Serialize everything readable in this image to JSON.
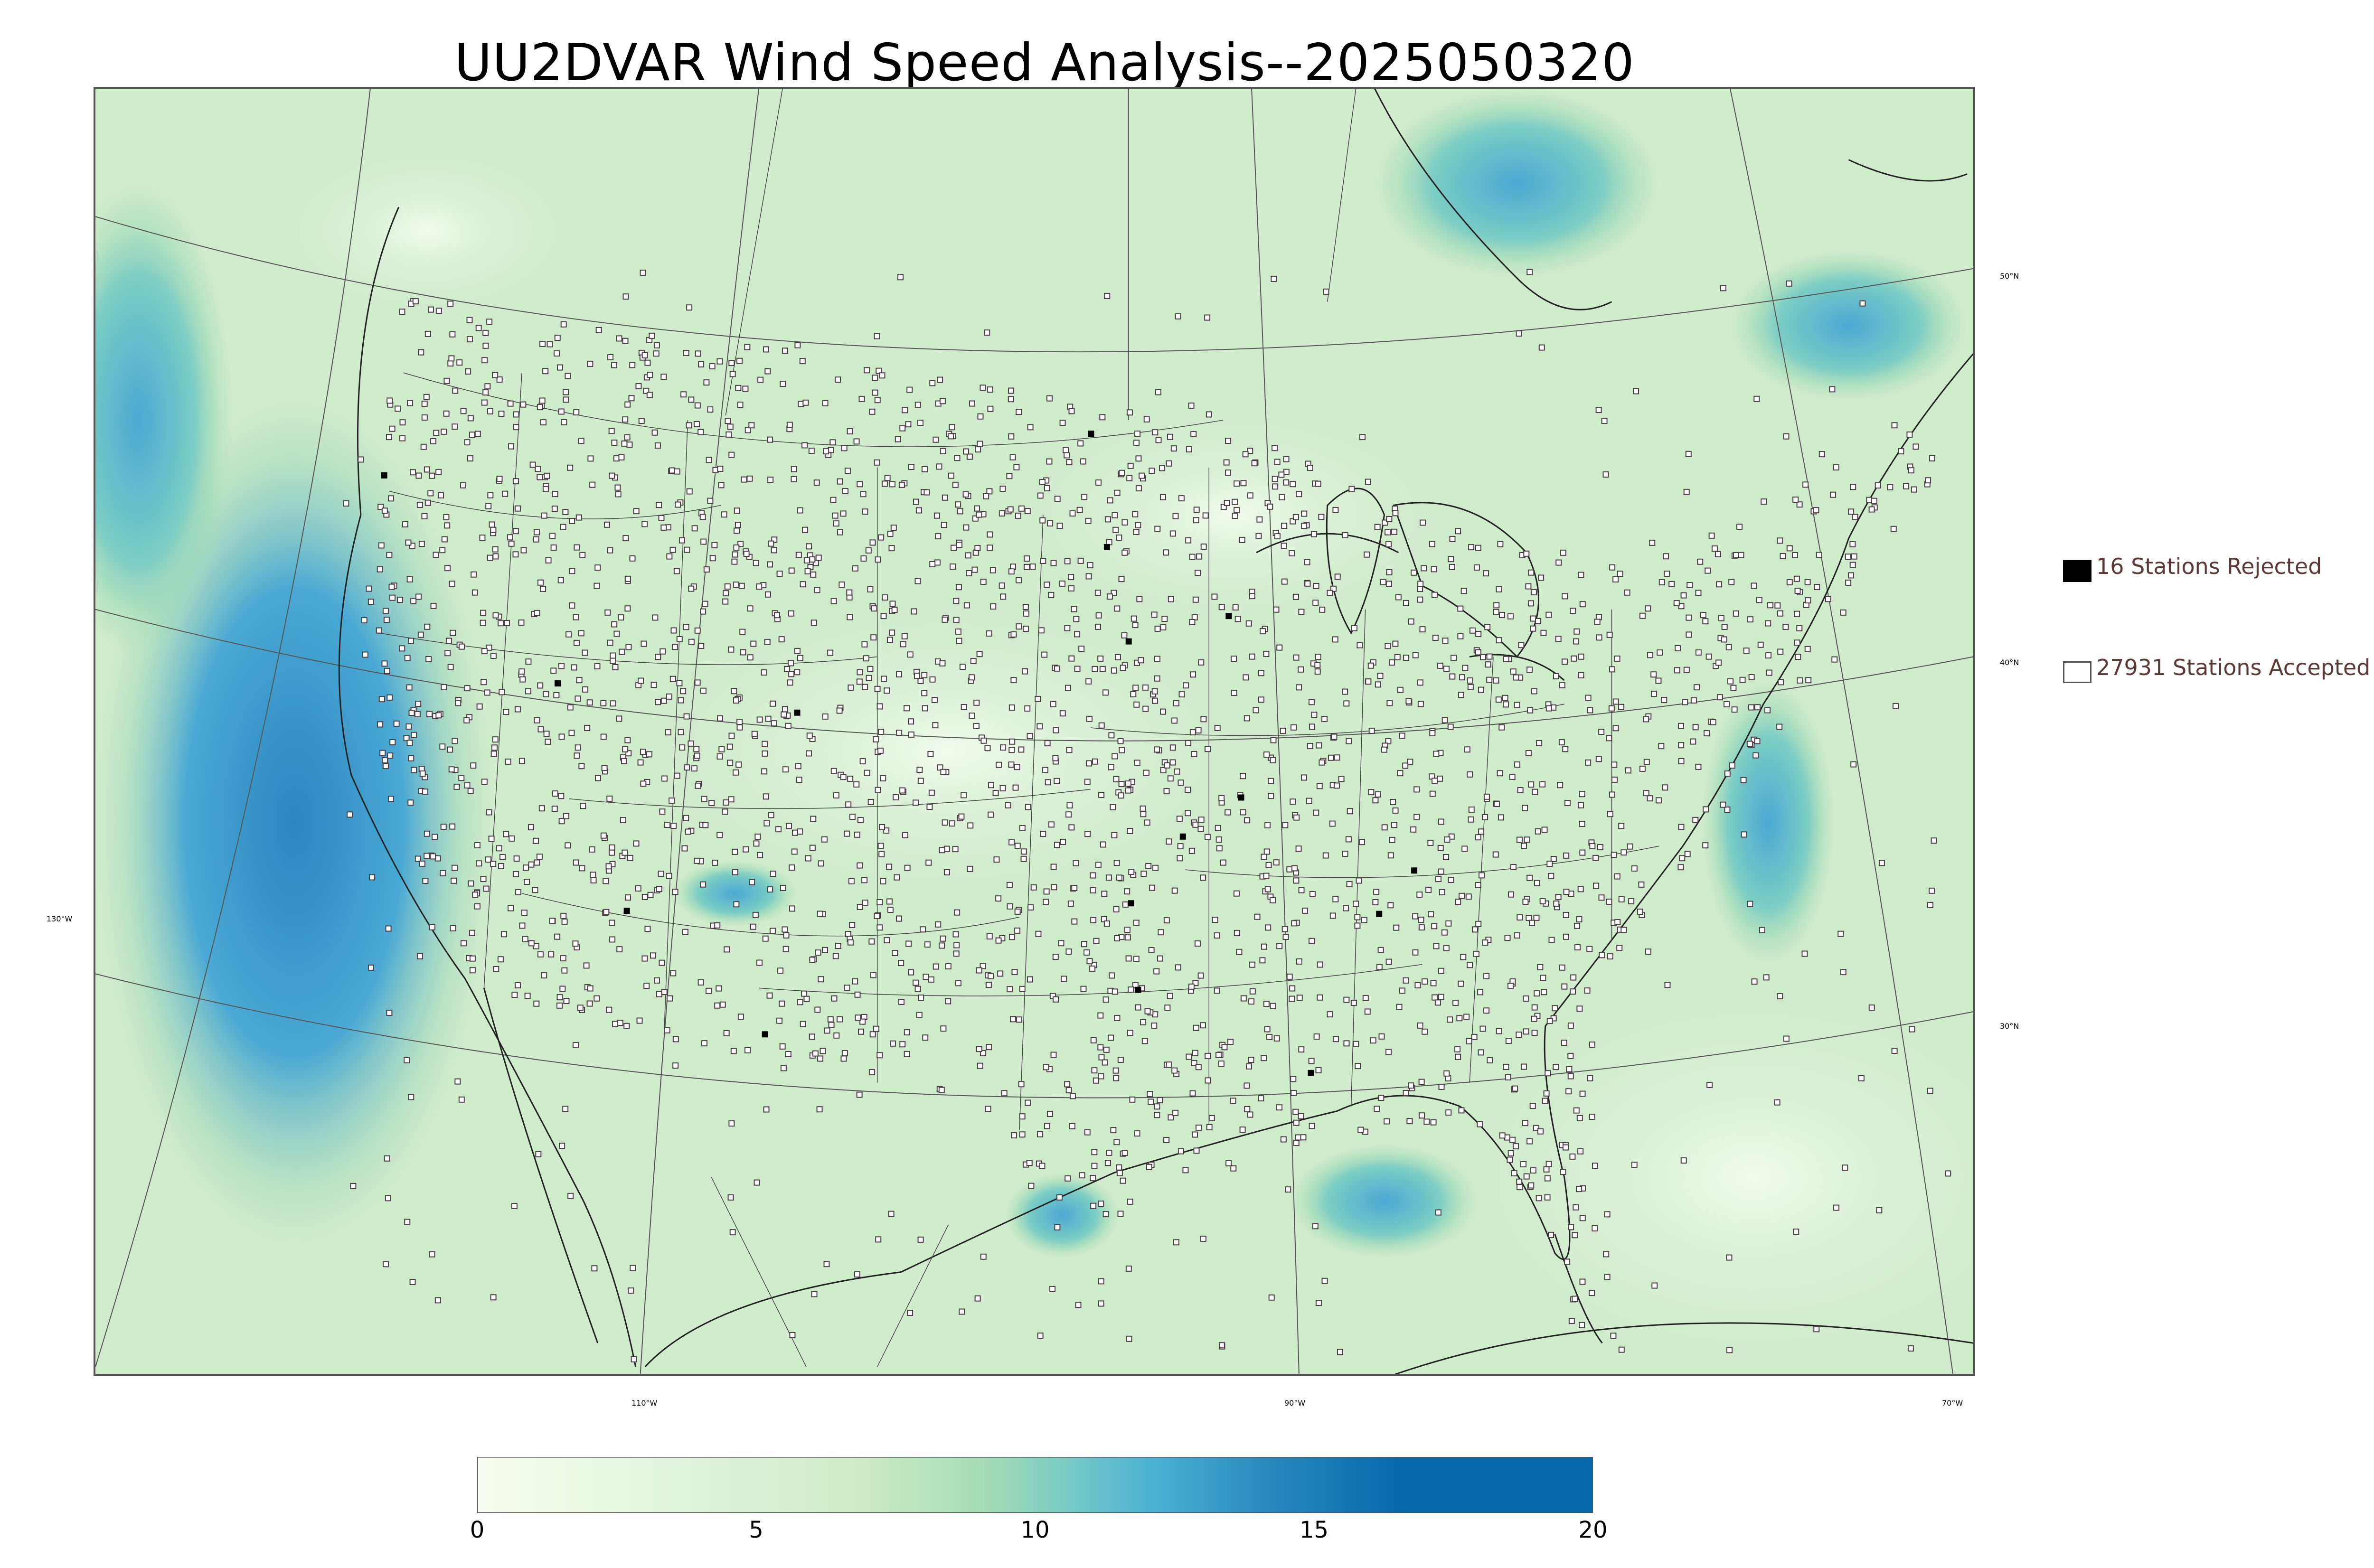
{
  "title": "UU2DVAR Wind Speed Analysis--2025050320",
  "map": {
    "lat_labels": [
      "50°N",
      "40°N",
      "30°N"
    ],
    "lon_labels": [
      "130°W",
      "110°W",
      "90°W",
      "70°W"
    ],
    "colors": {
      "field_light": "#f2faee",
      "field_mid": "#cdebc8",
      "field_green": "#a8dcb0",
      "field_teal": "#7ccdc4",
      "field_blue": "#4aa9d4",
      "field_dark": "#2b85bf",
      "station_outline": "#4a3b45",
      "rejected_fill": "#000000"
    }
  },
  "legend": {
    "rejected": {
      "label": "16 Stations Rejected",
      "icon": "filled-square"
    },
    "accepted": {
      "label": "27931 Stations Accepted",
      "icon": "open-square"
    }
  },
  "colorbar": {
    "min": 0,
    "max": 20,
    "ticks": [
      "0",
      "5",
      "10",
      "15",
      "20"
    ],
    "stops": [
      {
        "value": 0,
        "color": "#f7fcf0"
      },
      {
        "value": 4,
        "color": "#e0f3db"
      },
      {
        "value": 7,
        "color": "#ccebc5"
      },
      {
        "value": 9,
        "color": "#a8ddb5"
      },
      {
        "value": 10.5,
        "color": "#7bccc4"
      },
      {
        "value": 12,
        "color": "#4eb3d3"
      },
      {
        "value": 14,
        "color": "#2b8cbe"
      },
      {
        "value": 16.5,
        "color": "#0868ac"
      },
      {
        "value": 20,
        "color": "#0868ac"
      }
    ]
  }
}
